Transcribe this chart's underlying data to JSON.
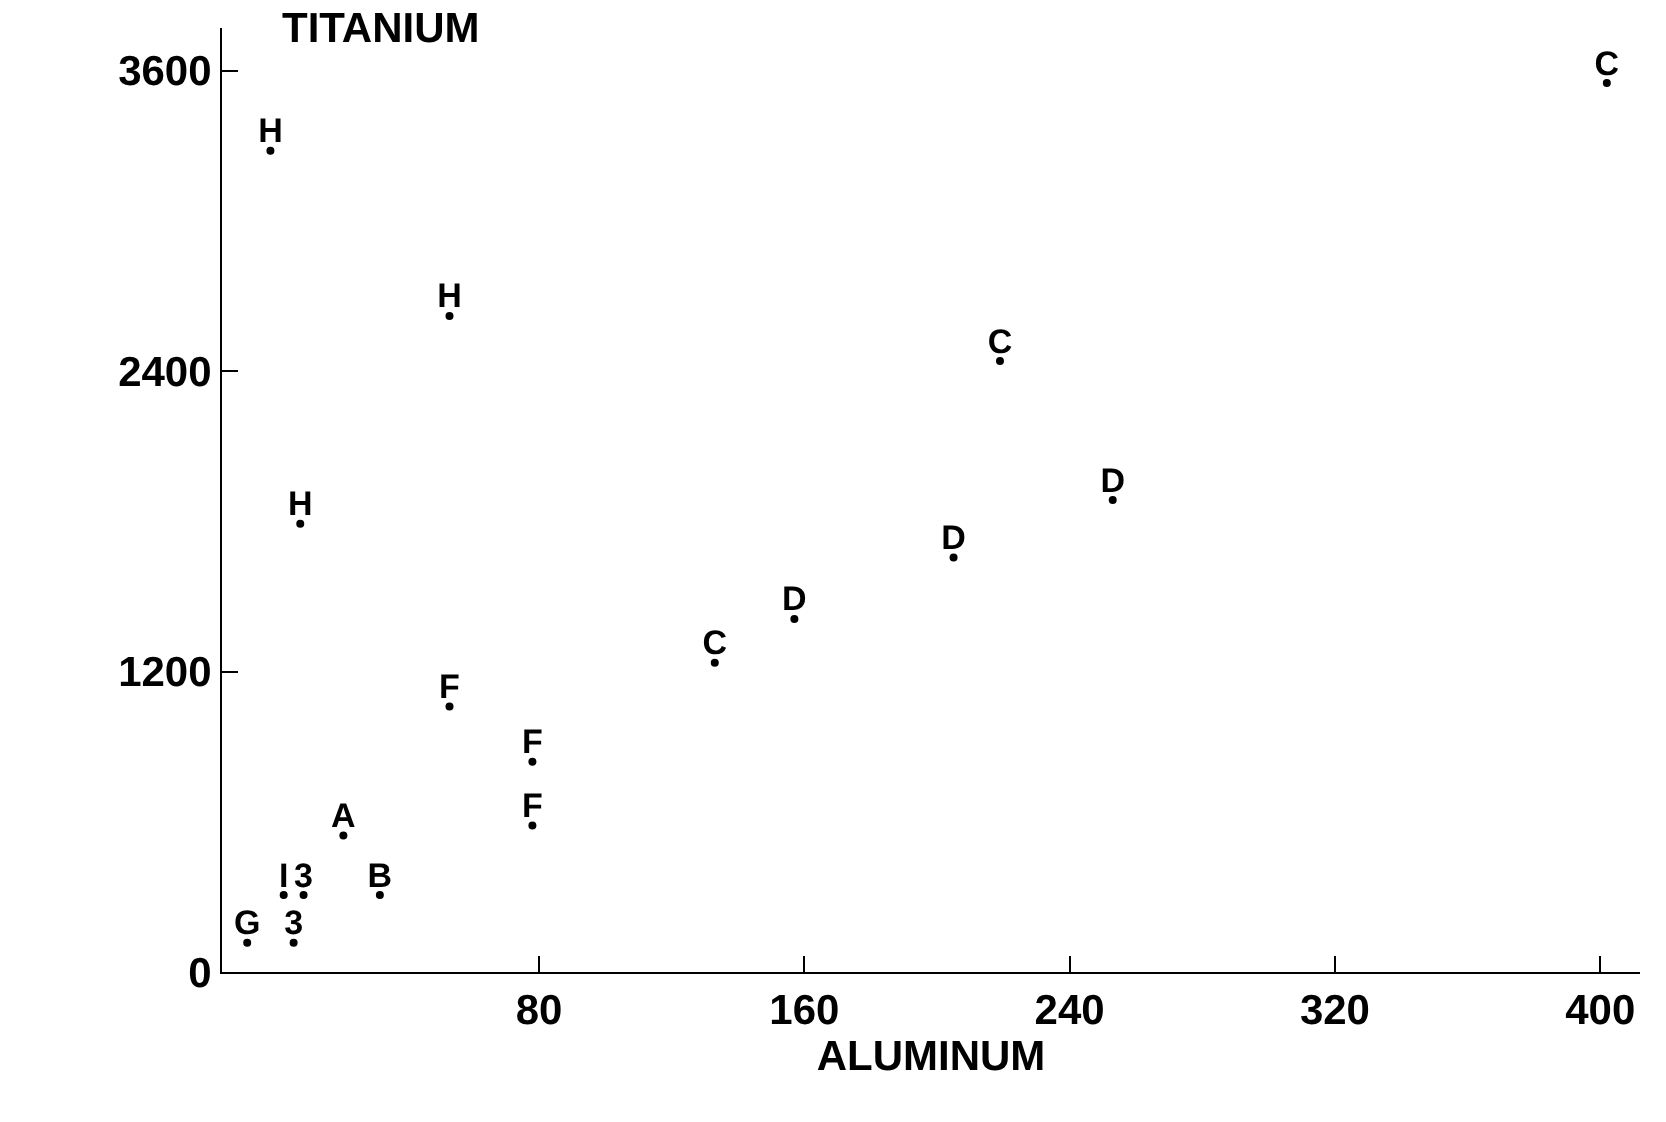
{
  "chart_data": {
    "type": "scatter",
    "xlabel": "ALUMINUM",
    "ylabel": "TITANIUM",
    "xlim": [
      -15.6,
      412
    ],
    "ylim": [
      0,
      3770
    ],
    "xticks": [
      80,
      160,
      240,
      320,
      400
    ],
    "yticks": [
      0,
      1200,
      2400,
      3600
    ],
    "legend": false,
    "marker": "circle",
    "series": [
      {
        "name": "A",
        "color": "#000000",
        "x": [
          21
        ],
        "values": [
          545
        ]
      },
      {
        "name": "B",
        "color": "#000000",
        "x": [
          32
        ],
        "values": [
          307
        ]
      },
      {
        "name": "C",
        "color": "#000000",
        "x": [
          133,
          219,
          402
        ],
        "values": [
          1235,
          2440,
          3550
        ]
      },
      {
        "name": "D",
        "color": "#000000",
        "x": [
          157,
          205,
          253
        ],
        "values": [
          1410,
          1655,
          1885
        ]
      },
      {
        "name": "F",
        "color": "#000000",
        "x": [
          53,
          78,
          78
        ],
        "values": [
          1060,
          840,
          585
        ]
      },
      {
        "name": "G",
        "color": "#000000",
        "x": [
          -8
        ],
        "values": [
          117
        ]
      },
      {
        "name": "H",
        "color": "#000000",
        "x": [
          -1,
          53,
          8
        ],
        "values": [
          3280,
          2620,
          1790
        ]
      },
      {
        "name": "I",
        "color": "#000000",
        "x": [
          3
        ],
        "values": [
          307
        ]
      },
      {
        "name": "3",
        "color": "#000000",
        "x": [
          9,
          6
        ],
        "values": [
          307,
          117
        ]
      }
    ]
  }
}
